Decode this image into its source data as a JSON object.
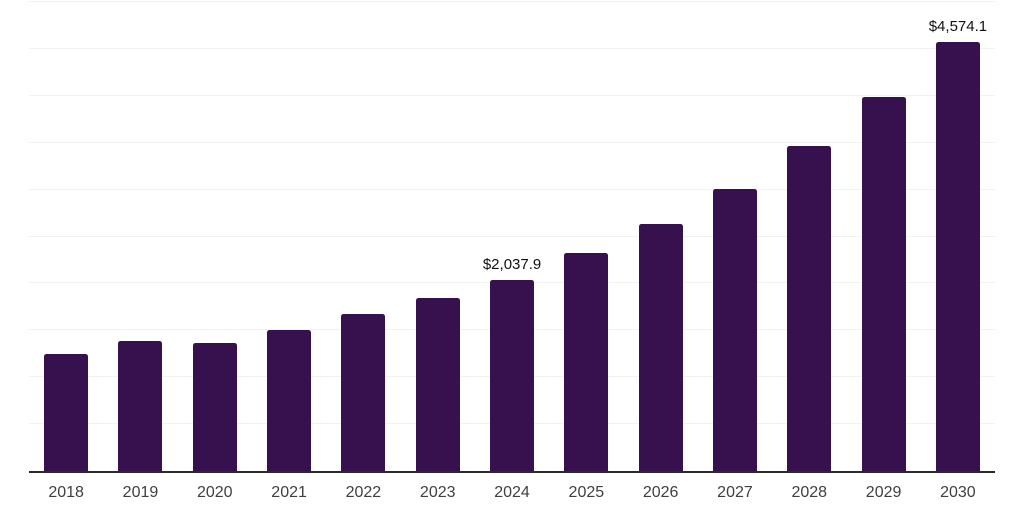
{
  "chart_data": {
    "type": "bar",
    "title": "",
    "xlabel": "",
    "ylabel": "",
    "categories": [
      "2018",
      "2019",
      "2020",
      "2021",
      "2022",
      "2023",
      "2024",
      "2025",
      "2026",
      "2027",
      "2028",
      "2029",
      "2030"
    ],
    "values": [
      1250,
      1390,
      1360,
      1500,
      1670,
      1840,
      2037.9,
      2320,
      2630,
      3010,
      3460,
      3990,
      4574.1
    ],
    "point_labels": [
      "",
      "",
      "",
      "",
      "",
      "",
      "$2,037.9",
      "",
      "",
      "",
      "",
      "",
      "$4,574.1"
    ],
    "labeled_points_note": "Only 2024 and 2030 bars carry printed value labels; other values estimated from bar heights against gridlines",
    "ylim": [
      0,
      5000
    ],
    "gridline_interval": 500,
    "y_tick_labels_visible": false,
    "grid": "horizontal",
    "legend_position": "none",
    "bar_color": "#36114e",
    "grid_color": "#f2f2f2",
    "axis_color": "#2a2a2a",
    "value_label_color": "#111111",
    "tick_label_color": "#3f3f3f",
    "background_color": "#ffffff"
  }
}
